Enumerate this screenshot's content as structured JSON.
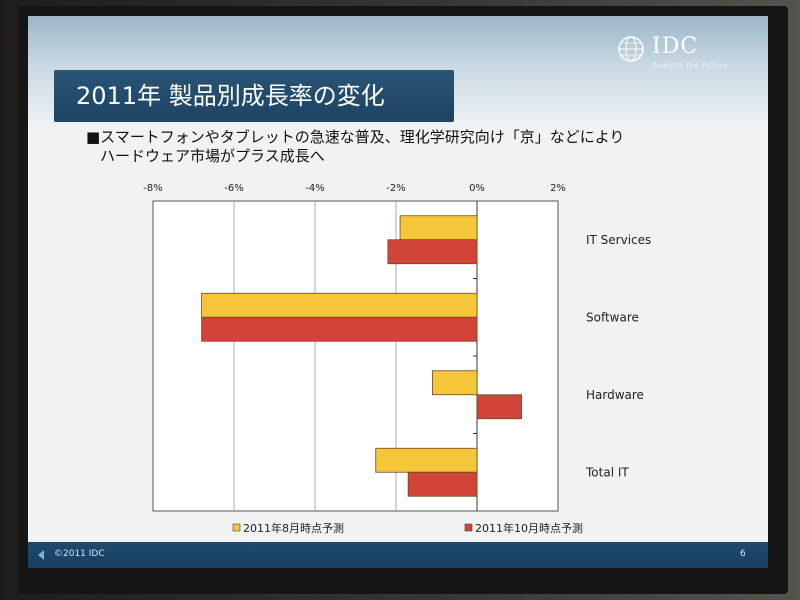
{
  "slide": {
    "title": "2011年 製品別成長率の変化",
    "subtitle_line1": "■スマートフォンやタブレットの急速な普及、理化学研究向け「京」などにより",
    "subtitle_line2": "ハードウェア市場がプラス成長へ",
    "logo_text": "IDC",
    "logo_tagline": "Analyze the Future",
    "copyright": "©2011 IDC",
    "page_number": "6",
    "colors": {
      "accent": "#1d4363",
      "series_aug": "#f5c63a",
      "series_oct": "#d2443a"
    }
  },
  "chart_data": {
    "type": "bar",
    "orientation": "horizontal",
    "categories": [
      "IT Services",
      "Software",
      "Hardware",
      "Total IT"
    ],
    "series": [
      {
        "name": "2011年8月時点予測",
        "color": "#f5c63a",
        "values": [
          -1.9,
          -6.8,
          -1.1,
          -2.5
        ]
      },
      {
        "name": "2011年10月時点予測",
        "color": "#d2443a",
        "values": [
          -2.2,
          -6.8,
          1.1,
          -1.7
        ]
      }
    ],
    "xlim": [
      -8,
      2
    ],
    "xticks": [
      "-8%",
      "-6%",
      "-4%",
      "-2%",
      "0%",
      "2%"
    ],
    "xtick_values": [
      -8,
      -6,
      -4,
      -2,
      0,
      2
    ],
    "grid": true,
    "legend_position": "bottom"
  }
}
